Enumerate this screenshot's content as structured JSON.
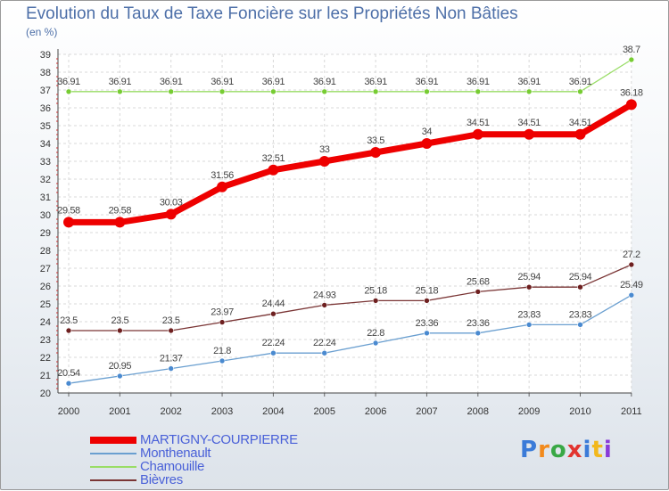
{
  "chart_data": {
    "type": "line",
    "title": "Evolution du Taux de Taxe Foncière sur les Propriétés Non Bâties",
    "ylabel": "(en %)",
    "xlabel": "",
    "x": [
      "2000",
      "2001",
      "2002",
      "2003",
      "2004",
      "2005",
      "2006",
      "2007",
      "2008",
      "2009",
      "2010",
      "2011"
    ],
    "ylim": [
      20,
      39
    ],
    "yticks": [
      20,
      21,
      22,
      23,
      24,
      25,
      26,
      27,
      28,
      29,
      30,
      31,
      32,
      33,
      34,
      35,
      36,
      37,
      38,
      39
    ],
    "grid": true,
    "legend_position": "bottom-left",
    "series": [
      {
        "name": "MARTIGNY-COURPIERRE",
        "color": "#ee0000",
        "emphasis": "thick",
        "values": [
          29.58,
          29.58,
          30.03,
          31.56,
          32.51,
          33,
          33.5,
          34,
          34.51,
          34.51,
          34.51,
          36.18
        ],
        "labels": [
          "29.58",
          "29.58",
          "30.03",
          "31.56",
          "32.51",
          "33",
          "33.5",
          "34",
          "34.51",
          "34.51",
          "34.51",
          "36.18"
        ]
      },
      {
        "name": "Monthenault",
        "color": "#6a9fd0",
        "marker_color": "#4a8ad0",
        "values": [
          20.54,
          20.95,
          21.37,
          21.8,
          22.24,
          22.24,
          22.8,
          23.36,
          23.36,
          23.83,
          23.83,
          25.49
        ],
        "labels": [
          "20.54",
          "20.95",
          "21.37",
          "21.8",
          "22.24",
          "22.24",
          "22.8",
          "23.36",
          "23.36",
          "23.83",
          "23.83",
          "25.49"
        ]
      },
      {
        "name": "Chamouille",
        "color": "#99dd66",
        "marker_color": "#77cc33",
        "values": [
          36.91,
          36.91,
          36.91,
          36.91,
          36.91,
          36.91,
          36.91,
          36.91,
          36.91,
          36.91,
          36.91,
          38.7
        ],
        "labels": [
          "36.91",
          "36.91",
          "36.91",
          "36.91",
          "36.91",
          "36.91",
          "36.91",
          "36.91",
          "36.91",
          "36.91",
          "36.91",
          "38.7"
        ]
      },
      {
        "name": "Bièvres",
        "color": "#7a3535",
        "marker_color": "#6e2020",
        "values": [
          23.5,
          23.5,
          23.5,
          23.97,
          24.44,
          24.93,
          25.18,
          25.18,
          25.68,
          25.94,
          25.94,
          27.2
        ],
        "labels": [
          "23.5",
          "23.5",
          "23.5",
          "23.97",
          "24.44",
          "24.93",
          "25.18",
          "25.18",
          "25.68",
          "25.94",
          "25.94",
          "27.2"
        ]
      }
    ]
  },
  "logo": {
    "text": "Proxiti",
    "letters": [
      "P",
      "r",
      "o",
      "x",
      "i",
      "t",
      "i"
    ],
    "colors": [
      "#3b7bd8",
      "#f28a1c",
      "#39a845",
      "#e2342f",
      "#3b7bd8",
      "#f2b81c",
      "#8a3bd8"
    ]
  }
}
